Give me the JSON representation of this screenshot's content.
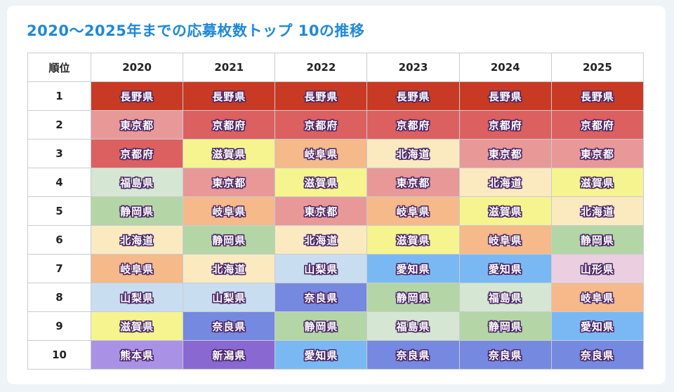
{
  "title": "2020〜2025年までの応募枚数トップ 10の推移",
  "table": {
    "header_rank": "順位",
    "years": [
      "2020",
      "2021",
      "2022",
      "2023",
      "2024",
      "2025"
    ],
    "rows": [
      {
        "rank": "1",
        "prefs": [
          "長野県",
          "長野県",
          "長野県",
          "長野県",
          "長野県",
          "長野県"
        ]
      },
      {
        "rank": "2",
        "prefs": [
          "東京都",
          "京都府",
          "京都府",
          "京都府",
          "京都府",
          "京都府"
        ]
      },
      {
        "rank": "3",
        "prefs": [
          "京都府",
          "滋賀県",
          "岐阜県",
          "北海道",
          "東京都",
          "東京都"
        ]
      },
      {
        "rank": "4",
        "prefs": [
          "福島県",
          "東京都",
          "滋賀県",
          "東京都",
          "北海道",
          "滋賀県"
        ]
      },
      {
        "rank": "5",
        "prefs": [
          "静岡県",
          "岐阜県",
          "東京都",
          "岐阜県",
          "滋賀県",
          "北海道"
        ]
      },
      {
        "rank": "6",
        "prefs": [
          "北海道",
          "静岡県",
          "北海道",
          "滋賀県",
          "岐阜県",
          "静岡県"
        ]
      },
      {
        "rank": "7",
        "prefs": [
          "岐阜県",
          "北海道",
          "山梨県",
          "愛知県",
          "愛知県",
          "山形県"
        ]
      },
      {
        "rank": "8",
        "prefs": [
          "山梨県",
          "山梨県",
          "奈良県",
          "静岡県",
          "福島県",
          "岐阜県"
        ]
      },
      {
        "rank": "9",
        "prefs": [
          "滋賀県",
          "奈良県",
          "静岡県",
          "福島県",
          "静岡県",
          "愛知県"
        ]
      },
      {
        "rank": "10",
        "prefs": [
          "熊本県",
          "新潟県",
          "愛知県",
          "奈良県",
          "奈良県",
          "奈良県"
        ]
      }
    ]
  },
  "pref_colors": {
    "長野県": "#c83a24",
    "京都府": "#dc6060",
    "東京都": "#e99898",
    "岐阜県": "#f5b98a",
    "北海道": "#fbe9c0",
    "滋賀県": "#f6f48e",
    "福島県": "#d5e6d2",
    "静岡県": "#b4d6a6",
    "山梨県": "#c9ddf0",
    "愛知県": "#7ab8f4",
    "奈良県": "#7689e0",
    "山形県": "#ebcfe0",
    "熊本県": "#a992e6",
    "新潟県": "#8a68d2"
  }
}
